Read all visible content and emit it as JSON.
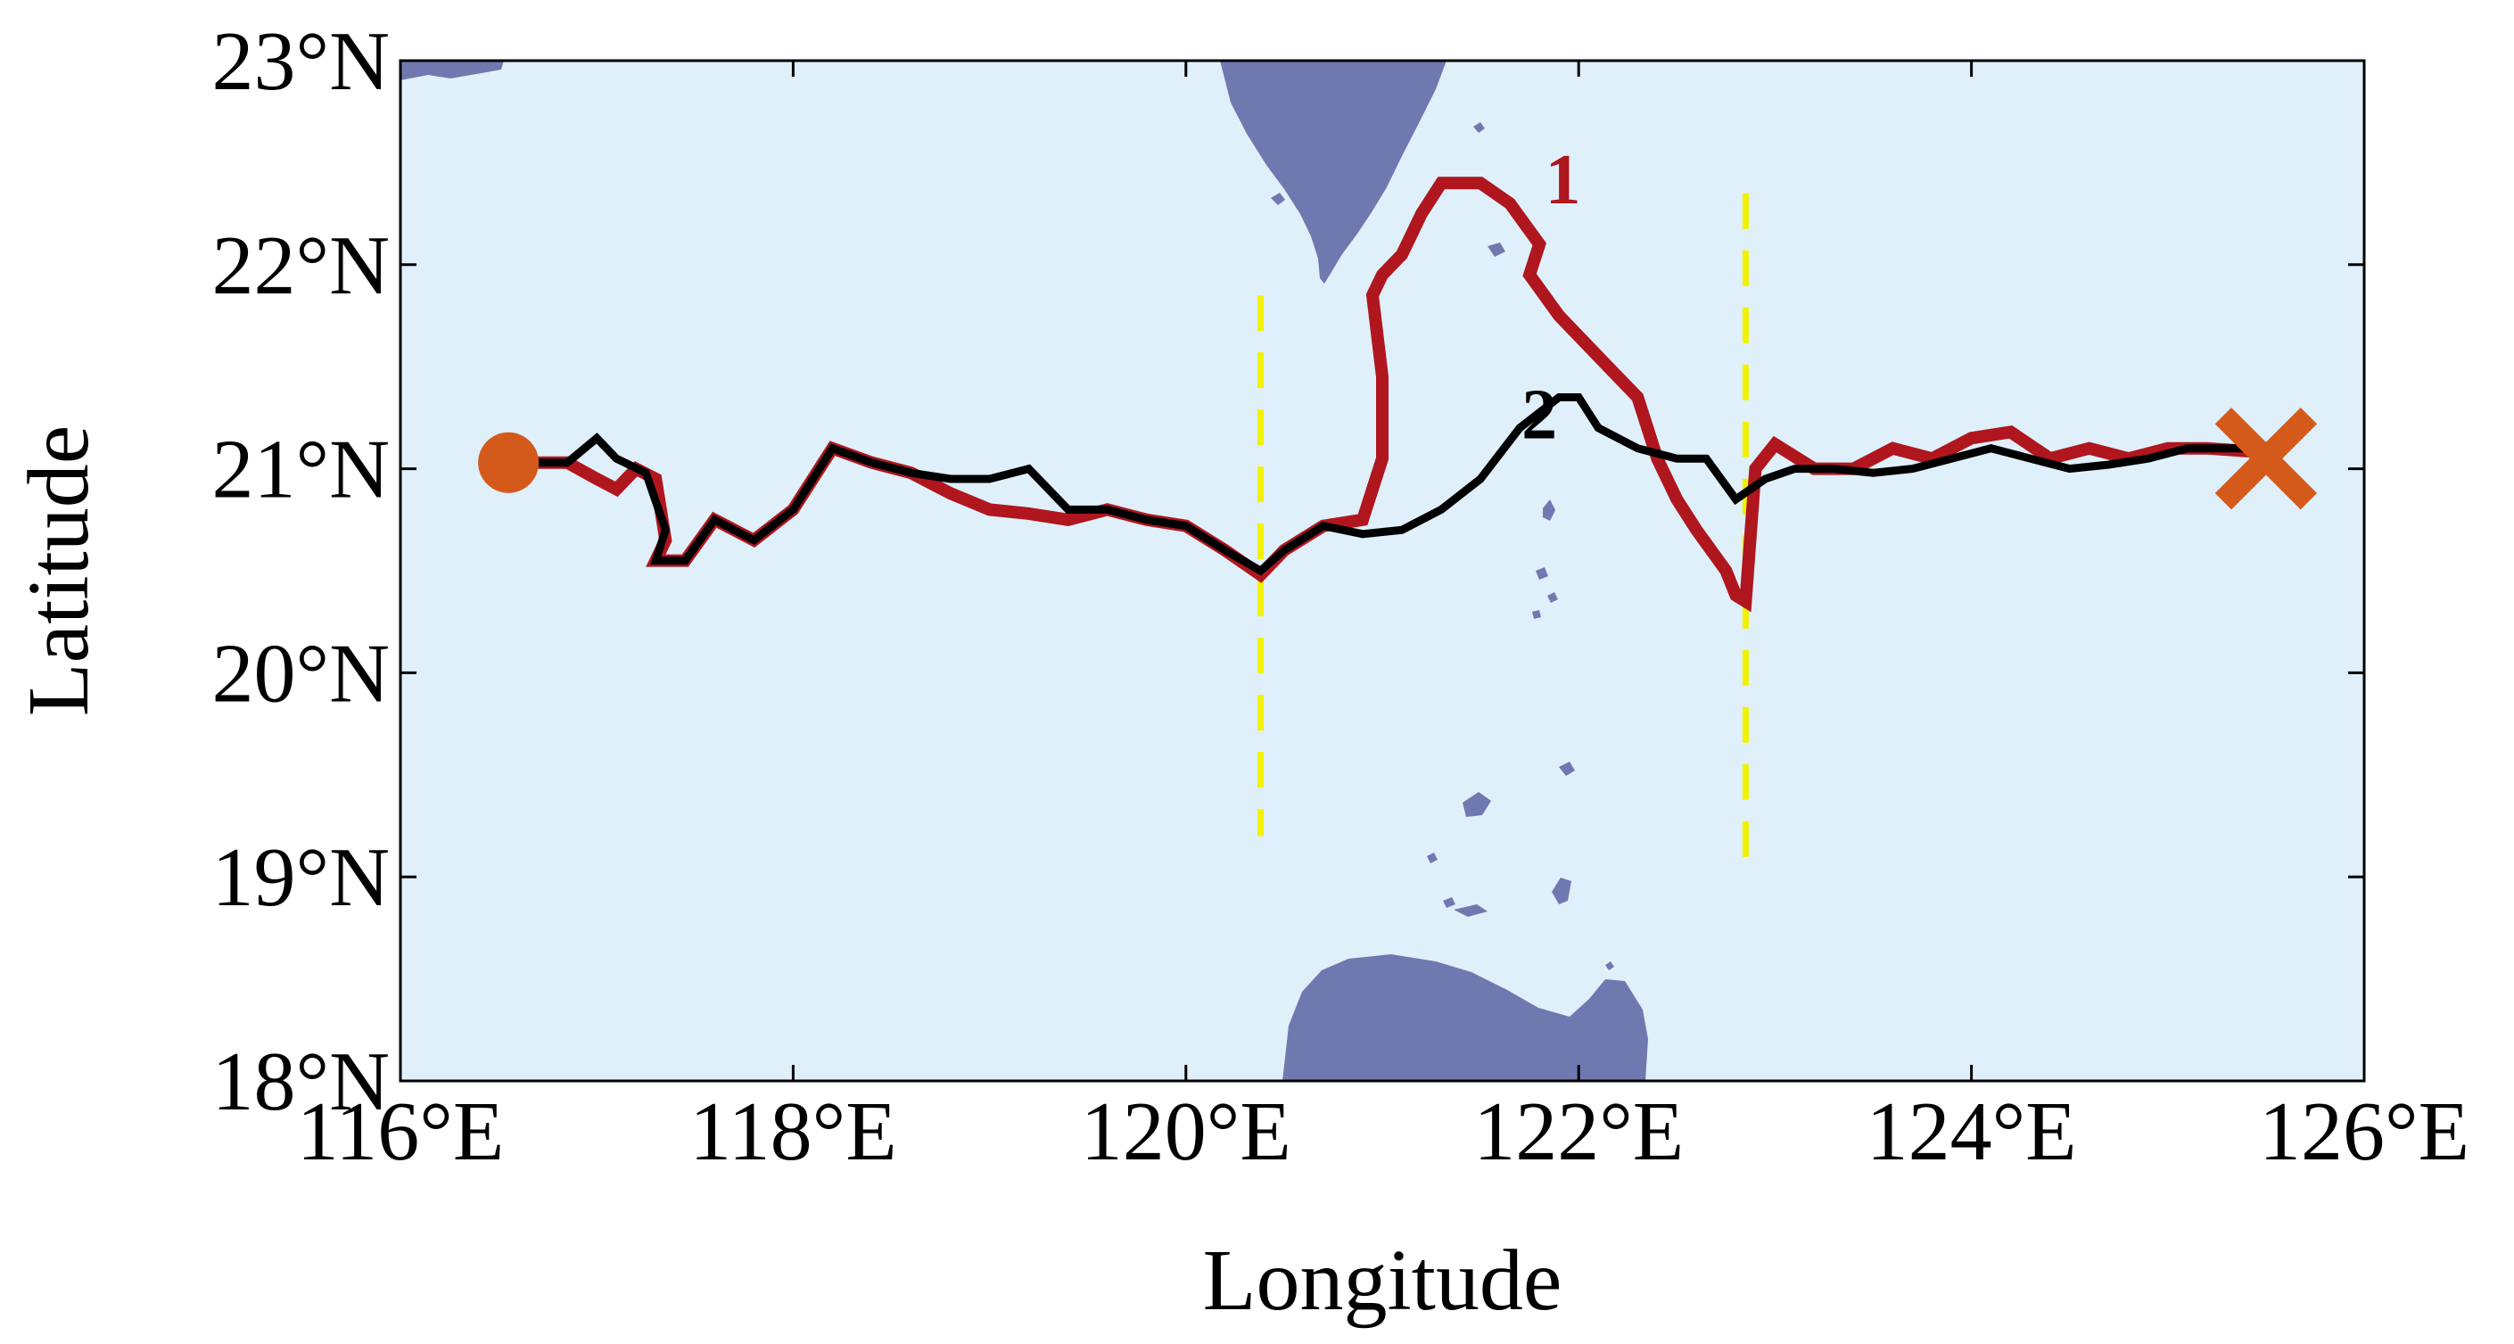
{
  "chart_data": {
    "type": "line",
    "title": "",
    "xlabel": "Longitude",
    "ylabel": "Latitude",
    "xlim": [
      116,
      126
    ],
    "ylim": [
      18,
      23
    ],
    "xticks": [
      116,
      118,
      120,
      122,
      124,
      126
    ],
    "yticks": [
      18,
      19,
      20,
      21,
      22,
      23
    ],
    "xtick_labels": [
      "116°E",
      "118°E",
      "120°E",
      "122°E",
      "124°E",
      "126°E"
    ],
    "ytick_labels": [
      "18°N",
      "19°N",
      "20°N",
      "21°N",
      "22°N",
      "23°N"
    ],
    "grid": false,
    "colors": {
      "ocean": "#dff0fa",
      "land": "#6f79b0",
      "path1": "#b0161e",
      "path2": "#000000",
      "guide": "#f2f200",
      "marker": "#d45a1c"
    },
    "start_marker": {
      "shape": "circle",
      "x": 116.55,
      "y": 21.03
    },
    "end_marker": {
      "shape": "x",
      "x": 125.5,
      "y": 21.05
    },
    "vertical_guides": [
      {
        "x": 120.38,
        "y": [
          19.2,
          21.85
        ]
      },
      {
        "x": 122.85,
        "y": [
          19.05,
          22.35
        ]
      }
    ],
    "series": [
      {
        "name": "1",
        "x": [
          116.55,
          116.85,
          117.0,
          117.1,
          117.2,
          117.3,
          117.35,
          117.3,
          117.45,
          117.6,
          117.8,
          118.0,
          118.2,
          118.4,
          118.6,
          118.8,
          119.0,
          119.2,
          119.4,
          119.6,
          119.8,
          120.0,
          120.2,
          120.38,
          120.5,
          120.7,
          120.9,
          121.0,
          121.0,
          120.95,
          121.0,
          121.1,
          121.2,
          121.3,
          121.4,
          121.5,
          121.65,
          121.8,
          121.75,
          121.9,
          122.1,
          122.3,
          122.4,
          122.5,
          122.6,
          122.75,
          122.8,
          122.85,
          122.9,
          123.0,
          123.2,
          123.4,
          123.6,
          123.8,
          124.0,
          124.2,
          124.4,
          124.6,
          124.8,
          125.0,
          125.2,
          125.5
        ],
        "y": [
          21.03,
          21.03,
          20.95,
          20.9,
          21.0,
          20.95,
          20.65,
          20.55,
          20.55,
          20.75,
          20.65,
          20.8,
          21.1,
          21.03,
          20.98,
          20.88,
          20.8,
          20.78,
          20.75,
          20.8,
          20.75,
          20.72,
          20.6,
          20.48,
          20.6,
          20.72,
          20.75,
          21.05,
          21.45,
          21.85,
          21.95,
          22.05,
          22.25,
          22.4,
          22.4,
          22.4,
          22.3,
          22.1,
          21.95,
          21.75,
          21.55,
          21.35,
          21.05,
          20.85,
          20.7,
          20.5,
          20.38,
          20.35,
          21.0,
          21.12,
          21.0,
          21.0,
          21.1,
          21.05,
          21.15,
          21.18,
          21.05,
          21.1,
          21.05,
          21.1,
          21.1,
          21.08
        ]
      },
      {
        "name": "2",
        "x": [
          116.55,
          116.85,
          117.0,
          117.1,
          117.25,
          117.35,
          117.3,
          117.45,
          117.6,
          117.8,
          118.0,
          118.2,
          118.4,
          118.6,
          118.8,
          119.0,
          119.2,
          119.4,
          119.6,
          119.8,
          120.0,
          120.2,
          120.38,
          120.5,
          120.7,
          120.9,
          121.1,
          121.3,
          121.5,
          121.7,
          121.9,
          122.0,
          122.1,
          122.3,
          122.5,
          122.65,
          122.8,
          122.95,
          123.1,
          123.3,
          123.5,
          123.7,
          123.9,
          124.1,
          124.3,
          124.5,
          124.7,
          124.9,
          125.1,
          125.3,
          125.5
        ],
        "y": [
          21.03,
          21.03,
          21.15,
          21.05,
          20.98,
          20.7,
          20.55,
          20.55,
          20.75,
          20.65,
          20.8,
          21.1,
          21.03,
          20.98,
          20.95,
          20.95,
          21.0,
          20.8,
          20.8,
          20.75,
          20.72,
          20.6,
          20.5,
          20.6,
          20.72,
          20.68,
          20.7,
          20.8,
          20.95,
          21.2,
          21.35,
          21.35,
          21.2,
          21.1,
          21.05,
          21.05,
          20.85,
          20.95,
          21.0,
          21.0,
          20.98,
          21.0,
          21.05,
          21.1,
          21.05,
          21.0,
          21.02,
          21.05,
          21.1,
          21.1,
          21.1
        ]
      }
    ],
    "annotations": [
      {
        "text": "1",
        "x": 121.92,
        "y": 22.3,
        "color": "#b0161e"
      },
      {
        "text": "2",
        "x": 121.8,
        "y": 21.15,
        "color": "#000000"
      }
    ]
  }
}
